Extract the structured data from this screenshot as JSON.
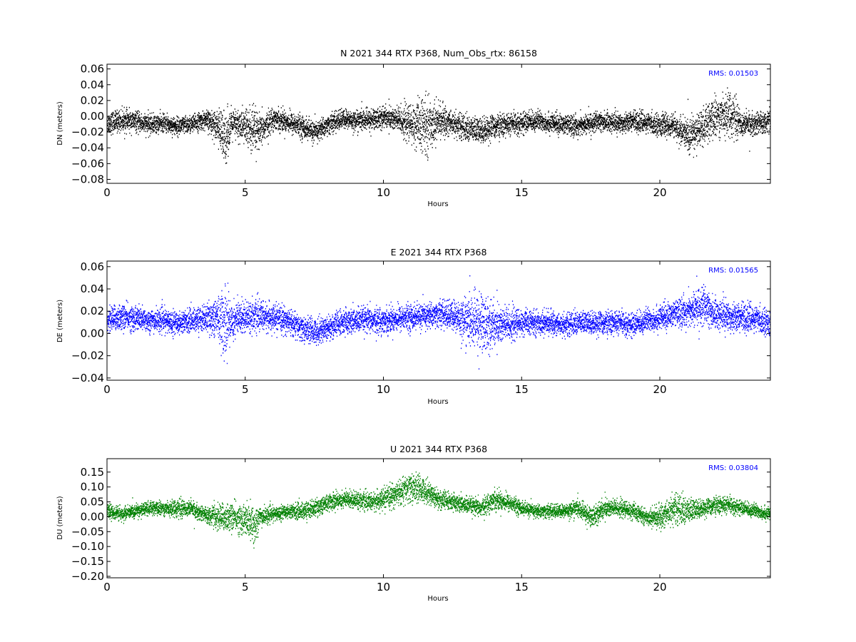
{
  "chart_data": [
    {
      "type": "scatter",
      "title": "N 2021 344 RTX  P368, Num_Obs_rtx: 86158",
      "xlabel": "Hours",
      "ylabel": "DN (meters)",
      "xlim": [
        0,
        24
      ],
      "ylim": [
        -0.085,
        0.066
      ],
      "xticks": [
        0,
        5,
        10,
        15,
        20
      ],
      "yticks": [
        -0.08,
        -0.06,
        -0.04,
        -0.02,
        0.0,
        0.02,
        0.04,
        0.06
      ],
      "ytick_labels": [
        "−0.08",
        "−0.06",
        "−0.04",
        "−0.02",
        "0.00",
        "0.02",
        "0.04",
        "0.06"
      ],
      "color": "#000000",
      "annotation": "RMS:  0.01503",
      "annotation_color": "#0000ff",
      "grid": false,
      "series": [
        {
          "x": [
            0,
            0.5,
            1,
            1.5,
            2,
            2.5,
            3,
            3.5,
            4,
            4.2,
            4.5,
            5,
            5.2,
            5.5,
            6,
            6.5,
            7,
            7.5,
            8,
            8.5,
            9,
            9.5,
            10,
            10.5,
            11,
            11.5,
            12,
            12.5,
            13,
            13.5,
            14,
            14.5,
            15,
            15.5,
            16,
            16.5,
            17,
            17.5,
            18,
            18.5,
            19,
            19.5,
            20,
            20.5,
            21,
            21.5,
            22,
            22.5,
            23,
            23.5,
            24
          ],
          "y": [
            -0.008,
            -0.005,
            -0.006,
            -0.01,
            -0.008,
            -0.012,
            -0.01,
            -0.004,
            -0.01,
            -0.03,
            -0.01,
            -0.012,
            -0.018,
            -0.02,
            -0.002,
            -0.006,
            -0.012,
            -0.02,
            -0.01,
            -0.003,
            -0.005,
            -0.004,
            0.0,
            -0.004,
            -0.01,
            -0.012,
            -0.005,
            -0.008,
            -0.015,
            -0.018,
            -0.012,
            -0.01,
            -0.008,
            -0.005,
            -0.008,
            -0.01,
            -0.012,
            -0.008,
            -0.006,
            -0.008,
            -0.005,
            -0.008,
            -0.01,
            -0.012,
            -0.025,
            -0.015,
            0.0,
            0.005,
            -0.01,
            -0.008,
            -0.006
          ],
          "spread": [
            0.012,
            0.012,
            0.011,
            0.011,
            0.01,
            0.01,
            0.01,
            0.01,
            0.016,
            0.035,
            0.016,
            0.02,
            0.03,
            0.018,
            0.012,
            0.012,
            0.012,
            0.012,
            0.011,
            0.011,
            0.011,
            0.012,
            0.012,
            0.015,
            0.022,
            0.032,
            0.018,
            0.014,
            0.014,
            0.015,
            0.013,
            0.012,
            0.012,
            0.011,
            0.011,
            0.011,
            0.011,
            0.011,
            0.011,
            0.011,
            0.011,
            0.011,
            0.012,
            0.012,
            0.02,
            0.02,
            0.022,
            0.025,
            0.014,
            0.012,
            0.012
          ]
        }
      ]
    },
    {
      "type": "scatter",
      "title": "E 2021 344 RTX  P368",
      "xlabel": "Hours",
      "ylabel": "DE (meters)",
      "xlim": [
        0,
        24
      ],
      "ylim": [
        -0.042,
        0.065
      ],
      "xticks": [
        0,
        5,
        10,
        15,
        20
      ],
      "yticks": [
        -0.04,
        -0.02,
        0.0,
        0.02,
        0.04,
        0.06
      ],
      "ytick_labels": [
        "−0.04",
        "−0.02",
        "0.00",
        "0.02",
        "0.04",
        "0.06"
      ],
      "color": "#0000ff",
      "annotation": "RMS:  0.01565",
      "annotation_color": "#0000ff",
      "grid": false,
      "series": [
        {
          "x": [
            0,
            0.5,
            1,
            1.5,
            2,
            2.5,
            3,
            3.5,
            4,
            4.2,
            4.5,
            5,
            5.5,
            6,
            6.5,
            7,
            7.5,
            8,
            8.5,
            9,
            9.5,
            10,
            10.5,
            11,
            11.5,
            12,
            12.5,
            13,
            13.5,
            14,
            14.5,
            15,
            15.5,
            16,
            16.5,
            17,
            17.5,
            18,
            18.5,
            19,
            19.5,
            20,
            20.5,
            21,
            21.5,
            22,
            22.5,
            23,
            23.5,
            24
          ],
          "y": [
            0.013,
            0.015,
            0.014,
            0.012,
            0.012,
            0.01,
            0.012,
            0.014,
            0.015,
            0.01,
            0.012,
            0.016,
            0.016,
            0.014,
            0.012,
            0.005,
            0.002,
            0.006,
            0.01,
            0.012,
            0.012,
            0.012,
            0.014,
            0.015,
            0.016,
            0.018,
            0.016,
            0.012,
            0.01,
            0.008,
            0.008,
            0.01,
            0.01,
            0.01,
            0.008,
            0.01,
            0.01,
            0.01,
            0.01,
            0.008,
            0.012,
            0.014,
            0.018,
            0.02,
            0.025,
            0.018,
            0.016,
            0.015,
            0.013,
            0.01
          ],
          "spread": [
            0.01,
            0.01,
            0.01,
            0.009,
            0.009,
            0.009,
            0.009,
            0.01,
            0.016,
            0.03,
            0.016,
            0.012,
            0.012,
            0.01,
            0.01,
            0.01,
            0.01,
            0.01,
            0.01,
            0.01,
            0.01,
            0.01,
            0.01,
            0.01,
            0.01,
            0.01,
            0.012,
            0.018,
            0.025,
            0.018,
            0.014,
            0.01,
            0.009,
            0.009,
            0.009,
            0.009,
            0.009,
            0.009,
            0.009,
            0.009,
            0.009,
            0.01,
            0.01,
            0.012,
            0.016,
            0.012,
            0.012,
            0.011,
            0.01,
            0.01
          ]
        }
      ]
    },
    {
      "type": "scatter",
      "title": "U 2021 344 RTX  P368",
      "xlabel": "Hours",
      "ylabel": "DU (meters)",
      "xlim": [
        0,
        24
      ],
      "ylim": [
        -0.205,
        0.195
      ],
      "xticks": [
        0,
        5,
        10,
        15,
        20
      ],
      "yticks": [
        -0.2,
        -0.15,
        -0.1,
        -0.05,
        0.0,
        0.05,
        0.1,
        0.15
      ],
      "ytick_labels": [
        "−0.20",
        "−0.15",
        "−0.10",
        "−0.05",
        "0.00",
        "0.05",
        "0.10",
        "0.15"
      ],
      "color": "#008000",
      "annotation": "RMS:  0.03804",
      "annotation_color": "#0000ff",
      "grid": false,
      "series": [
        {
          "x": [
            0,
            0.5,
            1,
            1.5,
            2,
            2.5,
            3,
            3.5,
            4,
            4.5,
            5,
            5.3,
            5.5,
            6,
            6.5,
            7,
            7.5,
            8,
            8.5,
            9,
            9.5,
            10,
            10.5,
            11,
            11.5,
            12,
            12.5,
            13,
            13.5,
            14,
            14.5,
            15,
            15.5,
            16,
            16.5,
            17,
            17.5,
            18,
            18.5,
            19,
            19.5,
            20,
            20.5,
            21,
            21.5,
            22,
            22.5,
            23,
            23.5,
            24
          ],
          "y": [
            0.02,
            0.01,
            0.02,
            0.03,
            0.03,
            0.03,
            0.03,
            0.01,
            0.0,
            0.0,
            -0.01,
            -0.03,
            0.0,
            0.01,
            0.02,
            0.02,
            0.03,
            0.05,
            0.06,
            0.06,
            0.05,
            0.06,
            0.08,
            0.1,
            0.09,
            0.06,
            0.05,
            0.04,
            0.03,
            0.06,
            0.05,
            0.03,
            0.02,
            0.02,
            0.02,
            0.03,
            0.0,
            0.03,
            0.03,
            0.02,
            0.0,
            0.0,
            0.03,
            0.02,
            0.03,
            0.04,
            0.04,
            0.03,
            0.02,
            0.01
          ],
          "spread": [
            0.02,
            0.02,
            0.02,
            0.02,
            0.02,
            0.025,
            0.025,
            0.02,
            0.04,
            0.04,
            0.045,
            0.07,
            0.03,
            0.02,
            0.02,
            0.025,
            0.025,
            0.025,
            0.025,
            0.025,
            0.025,
            0.03,
            0.035,
            0.045,
            0.035,
            0.03,
            0.025,
            0.025,
            0.025,
            0.03,
            0.025,
            0.02,
            0.02,
            0.02,
            0.02,
            0.025,
            0.03,
            0.03,
            0.025,
            0.025,
            0.02,
            0.035,
            0.045,
            0.04,
            0.025,
            0.025,
            0.025,
            0.02,
            0.02,
            0.02
          ]
        }
      ]
    }
  ]
}
